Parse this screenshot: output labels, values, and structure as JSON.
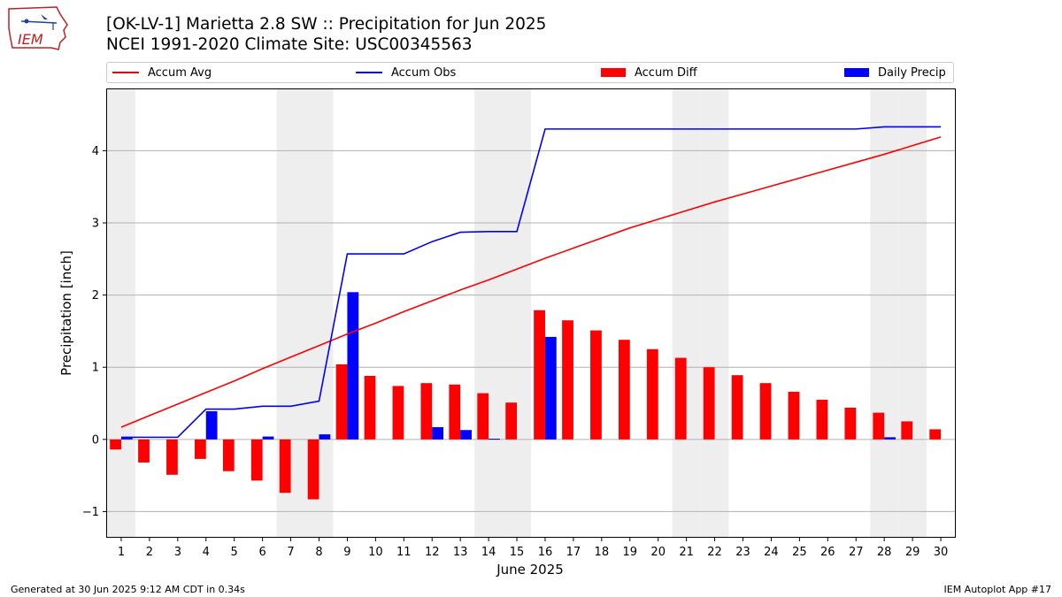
{
  "header": {
    "title_line1": "[OK-LV-1] Marietta 2.8 SW :: Precipitation for Jun 2025",
    "title_line2": "NCEI 1991-2020 Climate Site: USC00345563"
  },
  "logo": {
    "text": "IEM",
    "icon": "iowa-state-map-icon"
  },
  "footer": {
    "left": "Generated at 30 Jun 2025 9:12 AM CDT in 0.34s",
    "right": "IEM Autoplot App #17"
  },
  "legend": {
    "items": [
      {
        "label": "Accum Avg",
        "color": "#ff0000",
        "kind": "line"
      },
      {
        "label": "Accum Obs",
        "color": "#0000ff",
        "kind": "line"
      },
      {
        "label": "Accum Diff",
        "color": "#ff0000",
        "kind": "bar"
      },
      {
        "label": "Daily Precip",
        "color": "#0000ff",
        "kind": "bar"
      }
    ],
    "placement": "top"
  },
  "chart_data": {
    "type": "bar",
    "xlabel": "June 2025",
    "ylabel": "Precipitation [inch]",
    "ylim": [
      -1.35,
      4.85
    ],
    "yticks": [
      -1,
      0,
      1,
      2,
      3,
      4
    ],
    "ytick_labels": [
      "−1",
      "0",
      "1",
      "2",
      "3",
      "4"
    ],
    "grid": "horizontal",
    "weekend_shading_days": [
      1,
      7,
      8,
      14,
      15,
      21,
      22,
      28,
      29
    ],
    "shade_color": "#eeeeee",
    "days": [
      1,
      2,
      3,
      4,
      5,
      6,
      7,
      8,
      9,
      10,
      11,
      12,
      13,
      14,
      15,
      16,
      17,
      18,
      19,
      20,
      21,
      22,
      23,
      24,
      25,
      26,
      27,
      28,
      29,
      30
    ],
    "series": [
      {
        "name": "Accum Avg",
        "type": "line",
        "color": "#ff0000",
        "values": [
          0.17,
          0.33,
          0.49,
          0.65,
          0.81,
          0.98,
          1.14,
          1.3,
          1.46,
          1.61,
          1.77,
          1.92,
          2.07,
          2.21,
          2.36,
          2.51,
          2.65,
          2.79,
          2.93,
          3.05,
          3.17,
          3.29,
          3.4,
          3.51,
          3.62,
          3.73,
          3.84,
          3.95,
          4.07,
          4.19
        ]
      },
      {
        "name": "Accum Obs",
        "type": "line",
        "color": "#0000ff",
        "values": [
          0.03,
          0.03,
          0.03,
          0.42,
          0.42,
          0.46,
          0.46,
          0.53,
          2.57,
          2.57,
          2.57,
          2.74,
          2.87,
          2.88,
          2.88,
          4.3,
          4.3,
          4.3,
          4.3,
          4.3,
          4.3,
          4.3,
          4.3,
          4.3,
          4.3,
          4.3,
          4.3,
          4.33,
          4.33,
          4.33
        ]
      },
      {
        "name": "Accum Diff",
        "type": "bar",
        "color": "#ff0000",
        "values": [
          -0.14,
          -0.32,
          -0.49,
          -0.27,
          -0.44,
          -0.57,
          -0.74,
          -0.83,
          1.04,
          0.88,
          0.74,
          0.78,
          0.76,
          0.64,
          0.51,
          1.79,
          1.65,
          1.51,
          1.38,
          1.25,
          1.13,
          1.0,
          0.89,
          0.78,
          0.66,
          0.55,
          0.44,
          0.37,
          0.25,
          0.14
        ]
      },
      {
        "name": "Daily Precip",
        "type": "bar",
        "color": "#0000ff",
        "values": [
          0.03,
          0,
          0,
          0.39,
          0,
          0.04,
          0,
          0.07,
          2.04,
          0,
          0,
          0.17,
          0.13,
          0.01,
          0,
          1.42,
          0,
          0,
          0,
          0,
          0,
          0,
          0,
          0,
          0,
          0,
          0,
          0.03,
          0,
          0
        ]
      }
    ]
  }
}
